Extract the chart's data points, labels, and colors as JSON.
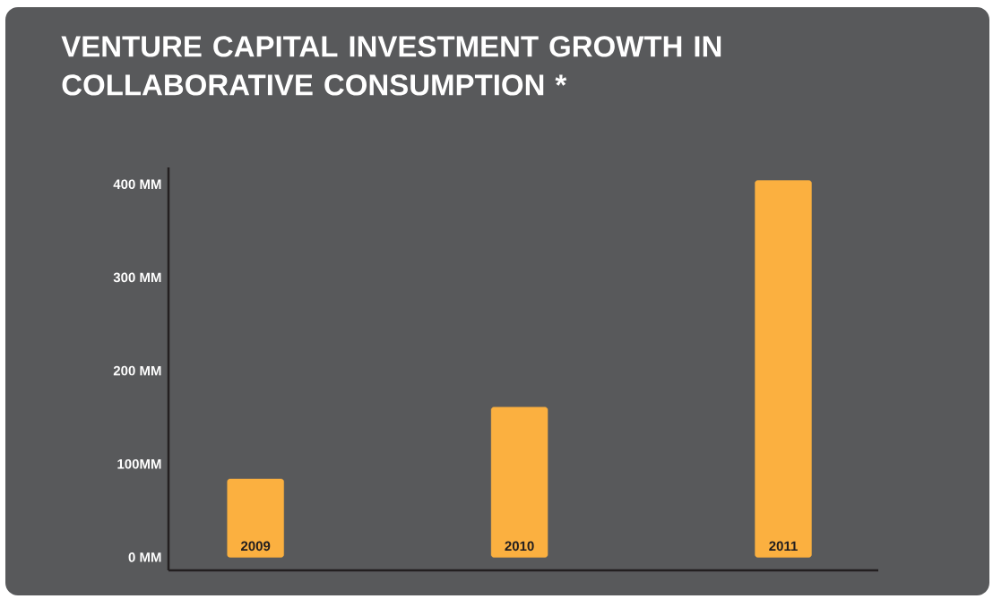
{
  "chart_data": {
    "type": "bar",
    "title": "VENTURE CAPITAL INVESTMENT GROWTH IN COLLABORATIVE CONSUMPTION *",
    "categories": [
      "2009",
      "2010",
      "2011"
    ],
    "values": [
      84,
      161,
      404
    ],
    "color": "#fbb040",
    "ylim": [
      -14,
      418
    ],
    "yticks": [
      {
        "value": 0,
        "label": "0 MM"
      },
      {
        "value": 100,
        "label": "100MM"
      },
      {
        "value": 200,
        "label": "200 MM"
      },
      {
        "value": 300,
        "label": "300 MM"
      },
      {
        "value": 400,
        "label": "400 MM"
      }
    ],
    "grid": false
  }
}
